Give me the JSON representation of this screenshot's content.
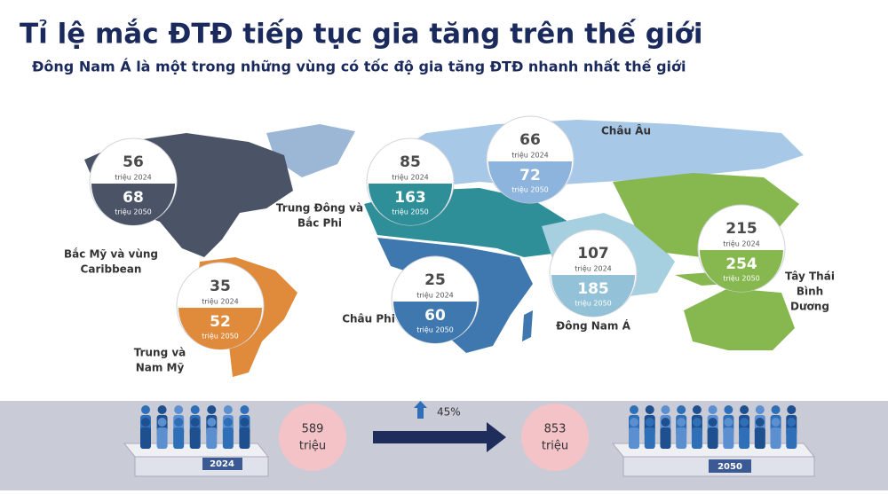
{
  "header": {
    "title": "Tỉ lệ mắc ĐTĐ tiếp tục gia tăng trên thế giới",
    "subtitle": "Đông Nam Á là một trong những vùng có tốc độ gia tăng ĐTĐ nhanh nhất thế giới"
  },
  "units": {
    "y2024": "triệu 2024",
    "y2050": "triệu 2050"
  },
  "regions": [
    {
      "name_lines": [
        "Bắc Mỹ và vùng",
        "Caribbean"
      ],
      "v2024": 56,
      "v2050": 68
    },
    {
      "name_lines": [
        "Trung và",
        "Nam Mỹ"
      ],
      "v2024": 35,
      "v2050": 52
    },
    {
      "name_lines": [
        "Trung Đông và",
        "Bắc Phi"
      ],
      "v2024": 85,
      "v2050": 163
    },
    {
      "name_lines": [
        "Châu Phi"
      ],
      "v2024": 25,
      "v2050": 60
    },
    {
      "name_lines": [
        "Châu Âu"
      ],
      "v2024": 66,
      "v2050": 72
    },
    {
      "name_lines": [
        "Đông Nam Á"
      ],
      "v2024": 107,
      "v2050": 185
    },
    {
      "name_lines": [
        "Tây Thái",
        "Bình",
        "Dương"
      ],
      "v2024": 215,
      "v2050": 254
    }
  ],
  "summary": {
    "total_2024": 589,
    "year_2024": "2024",
    "growth": "45%",
    "total_2050": 853,
    "year_2050": "2050",
    "unit": "triệu"
  }
}
